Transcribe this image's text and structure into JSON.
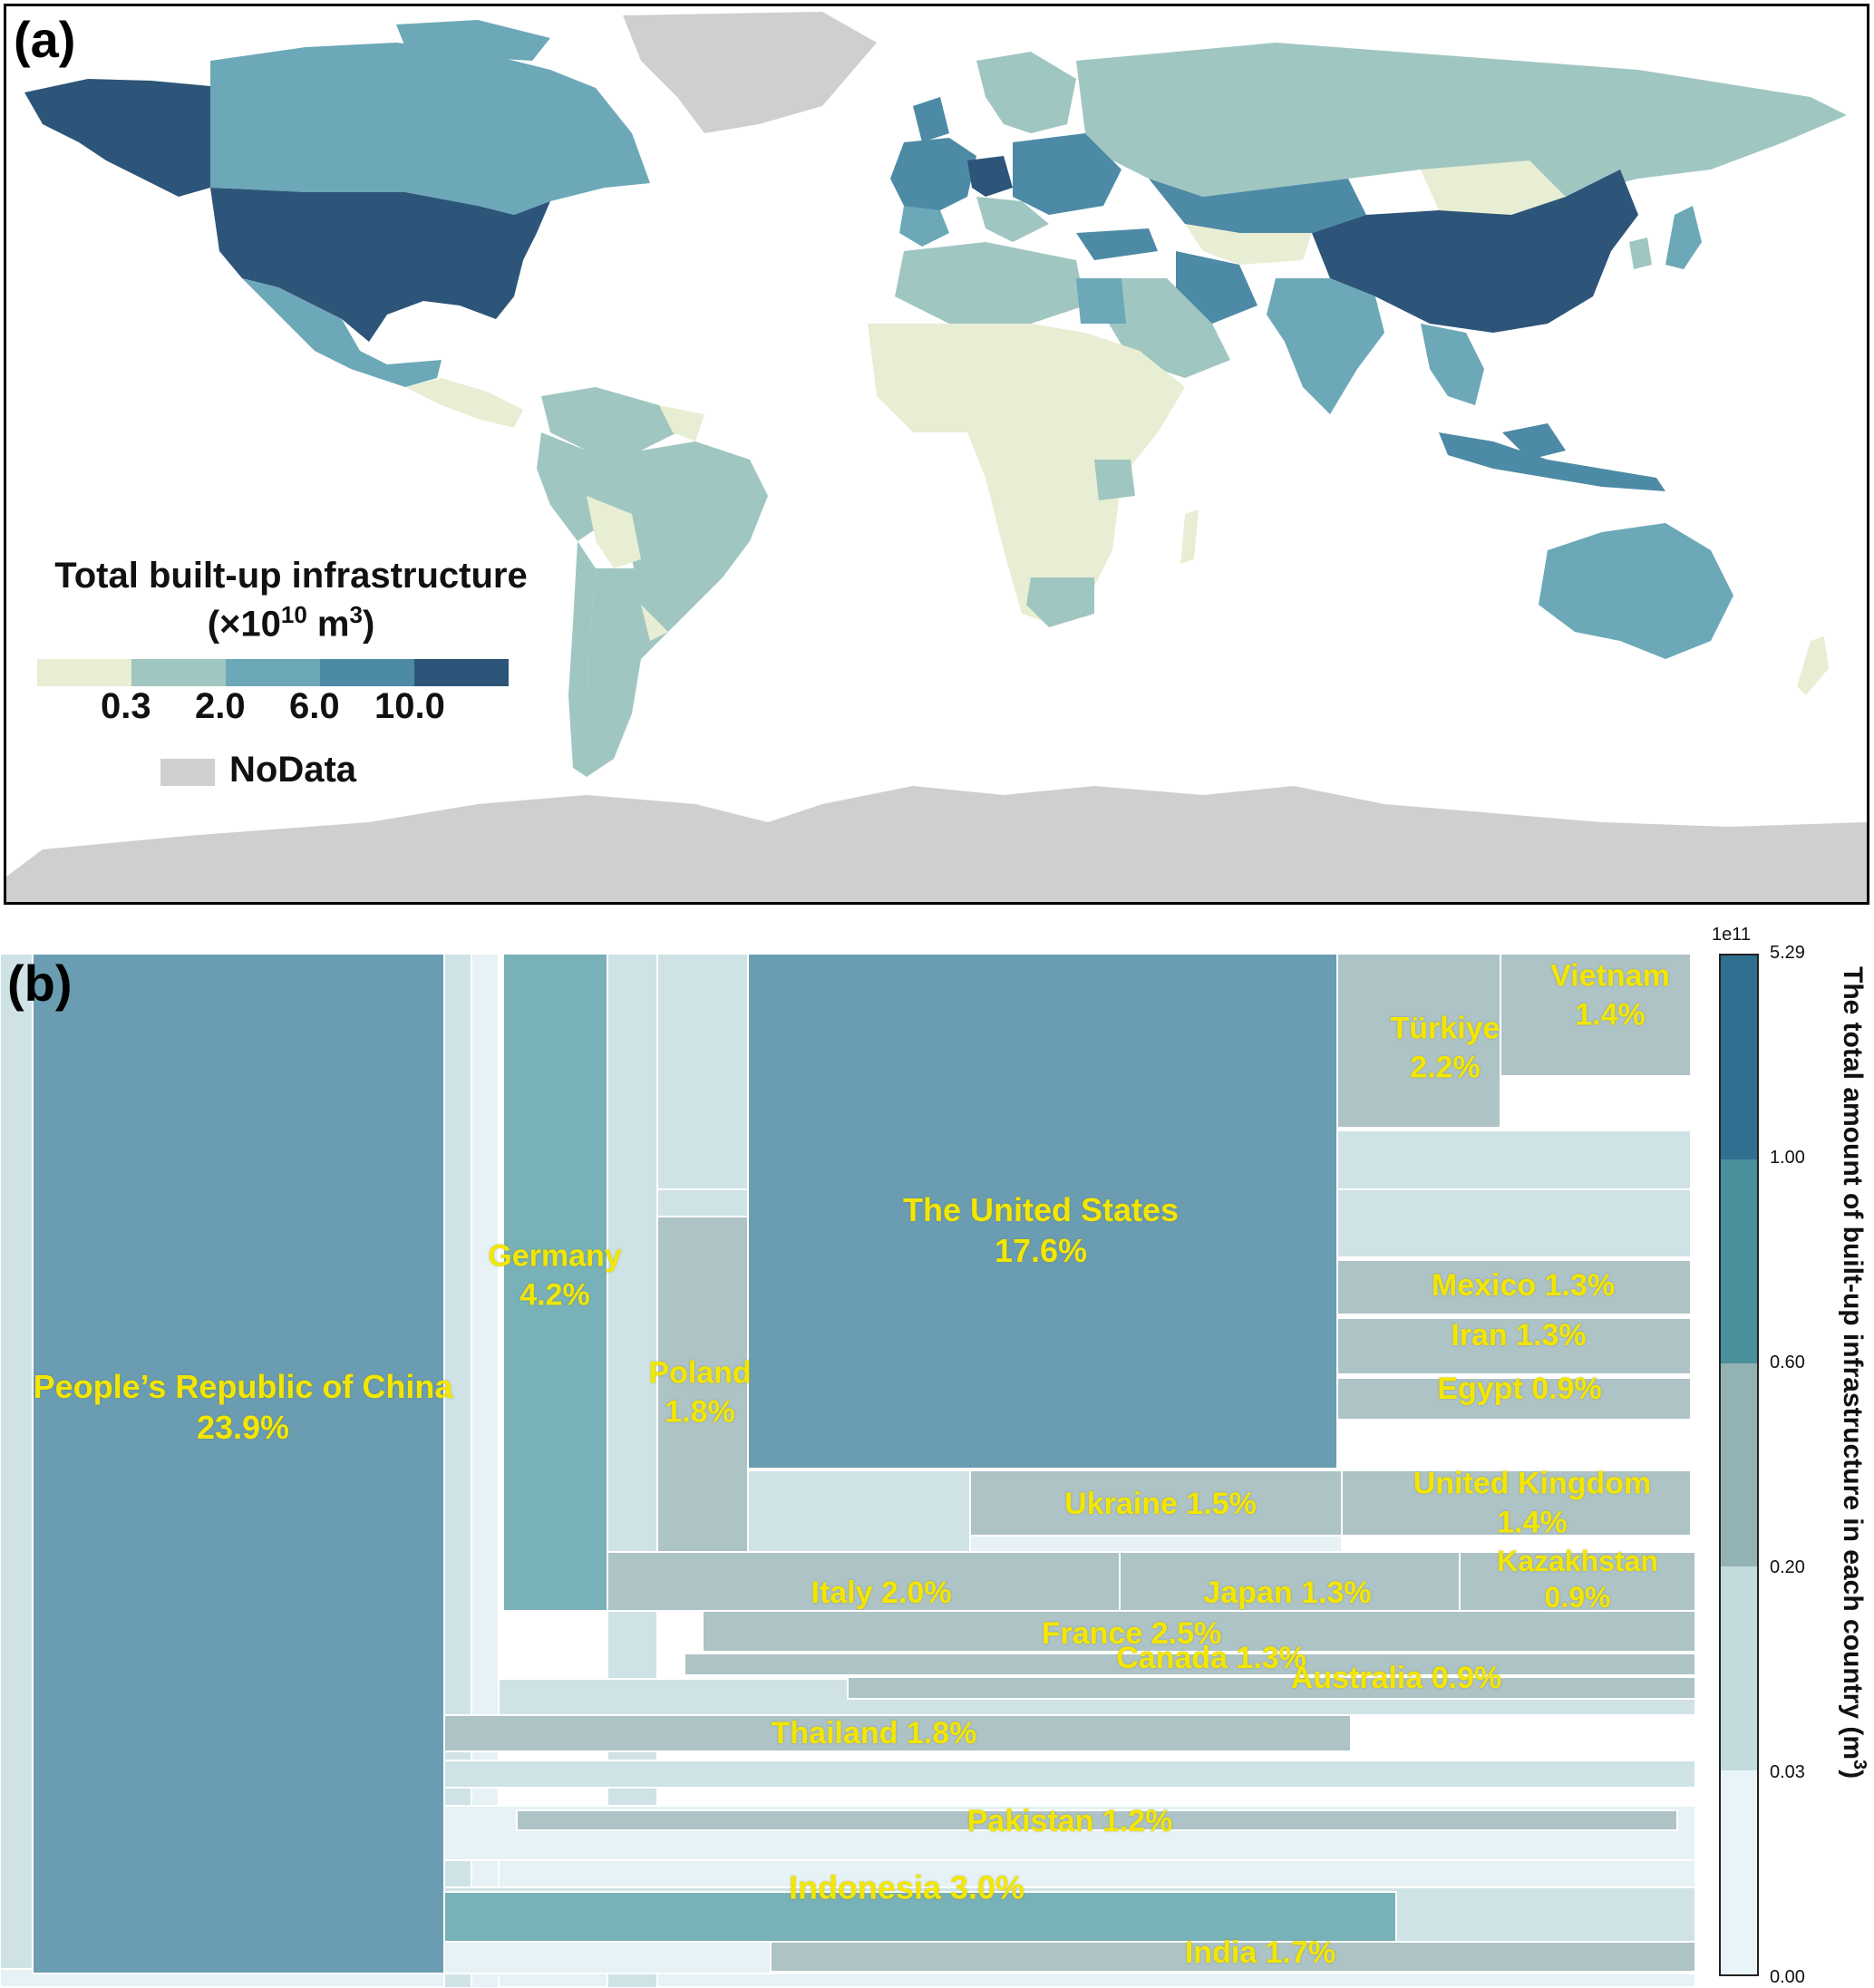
{
  "panel_a": {
    "label": "(a)",
    "legend": {
      "title_line1": "Total built-up infrastructure",
      "title_line2": "(×10",
      "title_sup": "10",
      "title_unit": " m",
      "title_unit_sup": "3",
      "title_close": ")",
      "colors": [
        "#e8eed3",
        "#a0c6c1",
        "#6ca8b8",
        "#4d8aa6",
        "#2c5579"
      ],
      "ticks": [
        "0.3",
        "2.0",
        "6.0",
        "10.0"
      ],
      "nodata_label": "NoData",
      "nodata_color": "#cfcfcf"
    }
  },
  "panel_b": {
    "label": "(b)",
    "colorbar": {
      "label": "The total amount of built-up infrastructure in each country (m",
      "label_sup": "3",
      "label_close": ")",
      "multiplier": "1e11",
      "ticks": [
        "5.29",
        "1.00",
        "0.60",
        "0.20",
        "0.03",
        "0.00"
      ],
      "colors": [
        "#2f6f90",
        "#4a8f9c",
        "#93b2b3",
        "#c4dbdd",
        "#e9f4f8"
      ]
    }
  },
  "chart_data": {
    "type": "treemap",
    "title": "",
    "value_unit": "m3",
    "items": [
      {
        "name": "People's Republic of China",
        "share": 23.9,
        "label": "People’s Republic of China",
        "pct": "23.9%"
      },
      {
        "name": "The United States",
        "share": 17.6,
        "label": "The United States",
        "pct": "17.6%"
      },
      {
        "name": "Germany",
        "share": 4.2,
        "label": "Germany",
        "pct": "4.2%"
      },
      {
        "name": "Indonesia",
        "share": 3.0,
        "label": "Indonesia 3.0%"
      },
      {
        "name": "France",
        "share": 2.5,
        "label": "France 2.5%"
      },
      {
        "name": "Türkiye",
        "share": 2.2,
        "label": "Türkiye",
        "pct": "2.2%"
      },
      {
        "name": "Italy",
        "share": 2.0,
        "label": "Italy 2.0%"
      },
      {
        "name": "Poland",
        "share": 1.8,
        "label": "Poland",
        "pct": "1.8%"
      },
      {
        "name": "Thailand",
        "share": 1.8,
        "label": "Thailand 1.8%"
      },
      {
        "name": "India",
        "share": 1.7,
        "label": "India 1.7%"
      },
      {
        "name": "Ukraine",
        "share": 1.5,
        "label": "Ukraine 1.5%"
      },
      {
        "name": "Vietnam",
        "share": 1.4,
        "label": "Vietnam",
        "pct": "1.4%"
      },
      {
        "name": "United Kingdom",
        "share": 1.4,
        "label": "United Kingdom",
        "pct": "1.4%"
      },
      {
        "name": "Mexico",
        "share": 1.3,
        "label": "Mexico 1.3%"
      },
      {
        "name": "Iran",
        "share": 1.3,
        "label": "Iran 1.3%"
      },
      {
        "name": "Japan",
        "share": 1.3,
        "label": "Japan 1.3%"
      },
      {
        "name": "Canada",
        "share": 1.3,
        "label": "Canada 1.3%"
      },
      {
        "name": "Pakistan",
        "share": 1.2,
        "label": "Pakistan 1.2%"
      },
      {
        "name": "Egypt",
        "share": 0.9,
        "label": "Egypt 0.9%"
      },
      {
        "name": "Kazakhstan",
        "share": 0.9,
        "label": "Kazakhstan",
        "pct": "0.9%"
      },
      {
        "name": "Australia",
        "share": 0.9,
        "label": "Australia 0.9%"
      }
    ]
  }
}
